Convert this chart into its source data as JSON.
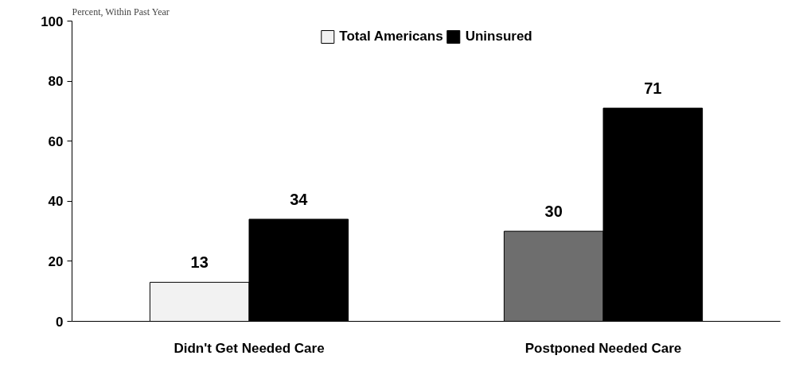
{
  "chart_data": {
    "type": "bar",
    "ylabel": "Percent, Within Past Year",
    "categories": [
      "Didn't Get Needed Care",
      "Postponed Needed Care"
    ],
    "series": [
      {
        "name": "Total Americans",
        "colors": [
          "#f2f2f2",
          "#6e6e6e"
        ],
        "values": [
          13,
          30
        ]
      },
      {
        "name": "Uninsured",
        "color": "#000000",
        "values": [
          34,
          71
        ]
      }
    ],
    "ylim": [
      0,
      100
    ],
    "yticks": [
      0,
      20,
      40,
      60,
      80,
      100
    ],
    "grid": false,
    "legend": "top",
    "data_labels": true
  }
}
